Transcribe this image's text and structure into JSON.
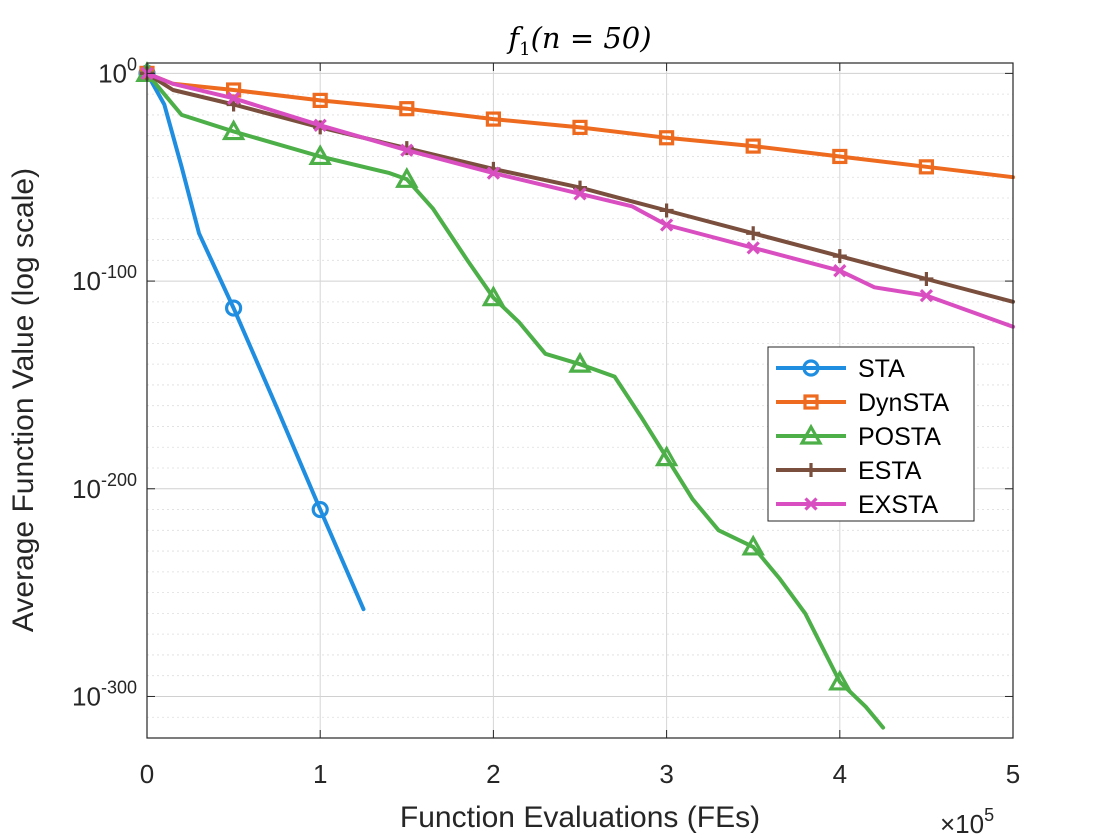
{
  "chart_data": {
    "type": "line",
    "title_base": "f",
    "title_sub": "1",
    "title_rest": "(n = 50)",
    "xlabel": "Function Evaluations (FEs)",
    "ylabel": "Average Function Value (log scale)",
    "x_multiplier_base": "×10",
    "x_multiplier_exp": "5",
    "xlim": [
      0,
      500000
    ],
    "ylim_log10": [
      -320,
      5
    ],
    "x_ticks": [
      0,
      100000,
      200000,
      300000,
      400000,
      500000
    ],
    "x_tick_labels": [
      "0",
      "1",
      "2",
      "3",
      "4",
      "5"
    ],
    "y_ticks": [
      0,
      -100,
      -200,
      -300
    ],
    "y_tick_base": "10",
    "y_tick_exps": [
      "0",
      "-100",
      "-200",
      "-300"
    ],
    "grid": true,
    "legend_position": "right",
    "series": [
      {
        "name": "STA",
        "color": "#1f8ee0",
        "marker": "circle",
        "x": [
          0,
          10000,
          20000,
          30000,
          50000,
          75000,
          100000,
          125000
        ],
        "log10_y": [
          0,
          -15,
          -45,
          -77,
          -113,
          -161,
          -210,
          -258
        ],
        "marker_x": [
          0,
          50000,
          100000
        ],
        "marker_log10_y": [
          0,
          -113,
          -210
        ]
      },
      {
        "name": "DynSTA",
        "color": "#ed6a1f",
        "marker": "square",
        "x": [
          0,
          15000,
          50000,
          100000,
          150000,
          200000,
          250000,
          300000,
          350000,
          400000,
          450000,
          500000
        ],
        "log10_y": [
          0,
          -5,
          -8,
          -13,
          -17,
          -22,
          -26,
          -31,
          -35,
          -40,
          -45,
          -50
        ],
        "marker_x": [
          0,
          50000,
          100000,
          150000,
          200000,
          250000,
          300000,
          350000,
          400000,
          450000
        ],
        "marker_log10_y": [
          0,
          -8,
          -13,
          -17,
          -22,
          -26,
          -31,
          -35,
          -40,
          -45
        ]
      },
      {
        "name": "POSTA",
        "color": "#4caf48",
        "marker": "triangle",
        "x": [
          0,
          10000,
          20000,
          50000,
          100000,
          140000,
          150000,
          165000,
          185000,
          200000,
          215000,
          230000,
          250000,
          270000,
          285000,
          300000,
          315000,
          330000,
          350000,
          365000,
          380000,
          400000,
          415000,
          425000
        ],
        "log10_y": [
          0,
          -10,
          -20,
          -28,
          -40,
          -48,
          -51,
          -65,
          -90,
          -108,
          -120,
          -135,
          -140,
          -146,
          -165,
          -185,
          -205,
          -220,
          -228,
          -243,
          -260,
          -293,
          -305,
          -315
        ],
        "marker_x": [
          0,
          50000,
          100000,
          150000,
          200000,
          250000,
          300000,
          350000,
          400000
        ],
        "marker_log10_y": [
          0,
          -28,
          -40,
          -51,
          -108,
          -140,
          -185,
          -228,
          -293
        ]
      },
      {
        "name": "ESTA",
        "color": "#7a4f3d",
        "marker": "plus",
        "x": [
          0,
          15000,
          50000,
          100000,
          150000,
          200000,
          250000,
          300000,
          350000,
          400000,
          450000,
          500000
        ],
        "log10_y": [
          0,
          -8,
          -15,
          -26,
          -36,
          -46,
          -55,
          -66,
          -77,
          -88,
          -99,
          -110
        ],
        "marker_x": [
          0,
          50000,
          100000,
          150000,
          200000,
          250000,
          300000,
          350000,
          400000,
          450000
        ],
        "marker_log10_y": [
          0,
          -15,
          -26,
          -36,
          -46,
          -55,
          -66,
          -77,
          -88,
          -99
        ]
      },
      {
        "name": "EXSTA",
        "color": "#d94fc1",
        "marker": "x",
        "x": [
          0,
          15000,
          50000,
          100000,
          150000,
          200000,
          250000,
          280000,
          300000,
          350000,
          400000,
          420000,
          450000,
          500000
        ],
        "log10_y": [
          0,
          -5,
          -12,
          -25,
          -37,
          -48,
          -58,
          -64,
          -73,
          -84,
          -95,
          -103,
          -107,
          -122
        ],
        "marker_x": [
          0,
          50000,
          100000,
          150000,
          200000,
          250000,
          300000,
          350000,
          400000,
          450000
        ],
        "marker_log10_y": [
          0,
          -12,
          -25,
          -37,
          -48,
          -58,
          -73,
          -84,
          -95,
          -107
        ]
      }
    ]
  }
}
